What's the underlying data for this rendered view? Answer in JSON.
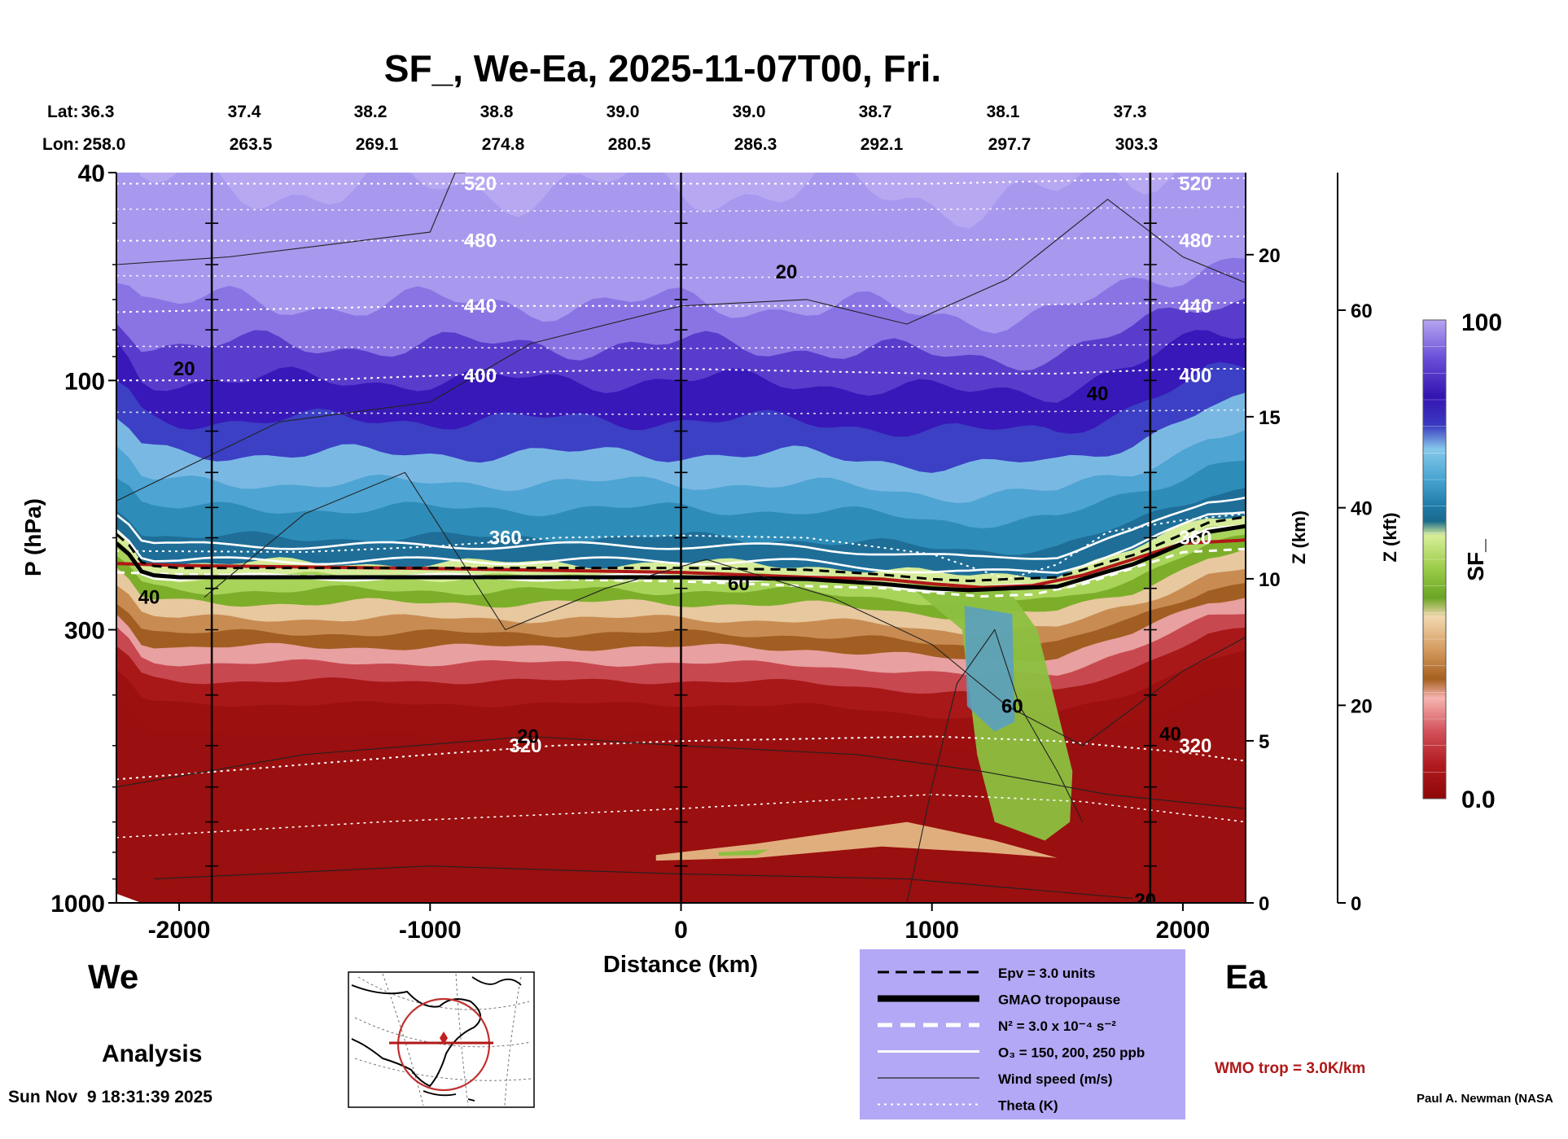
{
  "chart_data": {
    "type": "heatmap",
    "title": "SF_, We-Ea, 2025-11-07T00, Fri.",
    "xlabel": "Distance (km)",
    "ylabel": "P (hPa)",
    "xlim": [
      -2250,
      2250
    ],
    "x_ticks": [
      -2000,
      -1000,
      0,
      1000,
      2000
    ],
    "y_scale": "log",
    "ylim": [
      1000,
      40
    ],
    "y_ticks": [
      40,
      100,
      300,
      1000
    ],
    "z_km_label": "Z (km)",
    "z_km_ticks": [
      20,
      15,
      10,
      5,
      0
    ],
    "z_kft_label": "Z (kft)",
    "z_kft_ticks": [
      60,
      40,
      20,
      0
    ],
    "lat_label": "Lat:",
    "lon_label": "Lon:",
    "lat": [
      "36.3",
      "37.4",
      "38.2",
      "38.8",
      "39.0",
      "39.0",
      "38.7",
      "38.1",
      "37.3"
    ],
    "lon": [
      "258.0",
      "263.5",
      "269.1",
      "274.8",
      "280.5",
      "286.3",
      "292.1",
      "297.7",
      "303.3"
    ],
    "vertical_lines_km": [
      -1870,
      0,
      1870
    ],
    "colorbar": {
      "label": "SF_",
      "min_label": "0.0",
      "max_label": "100",
      "min": 0.0,
      "max": 100
    },
    "tropopause_P": [
      [
        -2250,
        205
      ],
      [
        -2200,
        215
      ],
      [
        -2150,
        232
      ],
      [
        -2100,
        236
      ],
      [
        -2000,
        238
      ],
      [
        -1000,
        238
      ],
      [
        0,
        238
      ],
      [
        500,
        240
      ],
      [
        800,
        245
      ],
      [
        1000,
        250
      ],
      [
        1150,
        252
      ],
      [
        1300,
        250
      ],
      [
        1500,
        248
      ],
      [
        1600,
        240
      ],
      [
        1700,
        232
      ],
      [
        1800,
        225
      ],
      [
        1900,
        215
      ],
      [
        2000,
        205
      ],
      [
        2100,
        195
      ],
      [
        2250,
        190
      ]
    ],
    "wmo_trop_P": [
      [
        -2250,
        224
      ],
      [
        -2000,
        226
      ],
      [
        -1000,
        229
      ],
      [
        0,
        233
      ],
      [
        500,
        238
      ],
      [
        800,
        240
      ],
      [
        1000,
        245
      ],
      [
        1200,
        249
      ],
      [
        1400,
        247
      ],
      [
        1600,
        236
      ],
      [
        1800,
        220
      ],
      [
        2000,
        205
      ],
      [
        2250,
        202
      ]
    ],
    "theta_contours": [
      {
        "label": "320",
        "points": [
          [
            -2250,
            580
          ],
          [
            -1800,
            558
          ],
          [
            -1000,
            520
          ],
          [
            -500,
            500
          ],
          [
            0,
            490
          ],
          [
            500,
            485
          ],
          [
            1000,
            480
          ],
          [
            1500,
            490
          ],
          [
            2000,
            515
          ],
          [
            2250,
            535
          ]
        ]
      },
      {
        "label": "360",
        "points": [
          [
            -2250,
            212
          ],
          [
            -1500,
            213
          ],
          [
            -1000,
            208
          ],
          [
            -500,
            200
          ],
          [
            0,
            198
          ],
          [
            500,
            200
          ],
          [
            1000,
            215
          ],
          [
            1300,
            240
          ],
          [
            1500,
            225
          ],
          [
            1700,
            195
          ],
          [
            2000,
            185
          ],
          [
            2250,
            180
          ]
        ]
      },
      {
        "label": "400",
        "points": [
          [
            -2250,
            100
          ],
          [
            -1500,
            100
          ],
          [
            -1000,
            98
          ],
          [
            -500,
            96
          ],
          [
            0,
            95
          ],
          [
            1000,
            97
          ],
          [
            1500,
            97
          ],
          [
            2000,
            95
          ],
          [
            2250,
            95
          ]
        ]
      },
      {
        "label": "440",
        "points": [
          [
            -2250,
            74
          ],
          [
            -1000,
            72
          ],
          [
            0,
            72
          ],
          [
            1000,
            72
          ],
          [
            2000,
            71
          ],
          [
            2250,
            71
          ]
        ]
      },
      {
        "label": "480",
        "points": [
          [
            -2250,
            54
          ],
          [
            -1000,
            54
          ],
          [
            0,
            54
          ],
          [
            1000,
            54
          ],
          [
            2000,
            53
          ],
          [
            2250,
            53
          ]
        ]
      },
      {
        "label": "520",
        "points": [
          [
            -2250,
            42
          ],
          [
            -1000,
            42
          ],
          [
            0,
            42
          ],
          [
            1000,
            42
          ],
          [
            2000,
            41
          ],
          [
            2250,
            41
          ]
        ]
      }
    ],
    "wind_labels": [
      {
        "text": "20",
        "x": 420,
        "p": 62
      },
      {
        "text": "20",
        "x": -1980,
        "p": 95
      },
      {
        "text": "40",
        "x": 1660,
        "p": 106
      },
      {
        "text": "40",
        "x": -2120,
        "p": 260
      },
      {
        "text": "60",
        "x": 230,
        "p": 245
      },
      {
        "text": "60",
        "x": 1320,
        "p": 420
      },
      {
        "text": "20",
        "x": -610,
        "p": 480
      },
      {
        "text": "40",
        "x": 1950,
        "p": 475
      },
      {
        "text": "20",
        "x": 1850,
        "p": 990
      }
    ],
    "side_labels": {
      "west": "We",
      "east": "Ea",
      "analysis": "Analysis"
    },
    "legend": {
      "entries": [
        {
          "label": "Epv = 3.0 units",
          "style": "black-dashed"
        },
        {
          "label": "GMAO tropopause",
          "style": "black-thick"
        },
        {
          "label": "N² = 3.0 x 10⁻⁴ s⁻²",
          "style": "white-dashed"
        },
        {
          "label": "O₃ = 150, 200, 250 ppb",
          "style": "white-solid"
        },
        {
          "label": "Wind speed (m/s)",
          "style": "black-thin"
        },
        {
          "label": "Theta (K)",
          "style": "white-dotted"
        }
      ],
      "wmo_label": "WMO trop = 3.0K/km"
    },
    "timestamp": "Sun Nov  9 18:31:39 2025",
    "credit": "Paul A. Newman (NASA"
  },
  "colors": {
    "stratosphere_top": "#b8a8f2",
    "deep_purple": "#3818b8",
    "blue_mid": "#2e8cb8",
    "green": "#82b832",
    "tan": "#d0945a",
    "red": "#9c1010",
    "wmo": "#b01818",
    "legend_bg": "#b3a8f5"
  }
}
